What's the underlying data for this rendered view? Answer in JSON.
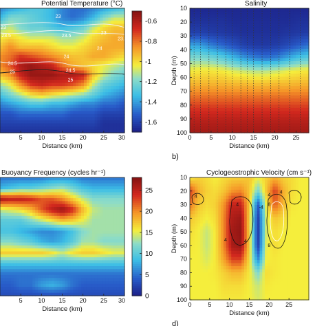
{
  "colors": {
    "cold": "#1c2d8f",
    "blue": "#2f6fd0",
    "cyan": "#35c1e6",
    "yellow": "#f6ee3c",
    "orange": "#f59a26",
    "red": "#cf2020",
    "darkred": "#861313"
  },
  "chart_data": [
    {
      "id": "a",
      "type": "heatmap",
      "title": "Potential Temperature (°C)",
      "xlabel": "Distance (km)",
      "ylabel": "",
      "panel_label": "",
      "xlim": [
        0,
        30
      ],
      "ylim": [
        100,
        10
      ],
      "x_ticks": [
        5,
        10,
        15,
        20,
        25,
        30
      ],
      "y_ticks": [],
      "colorbar": {
        "ticks": [
          -0.6,
          -0.8,
          -1,
          -1.2,
          -1.4,
          -1.6
        ],
        "range": [
          -1.7,
          -0.5
        ]
      },
      "contour_labels": [
        {
          "text": "23",
          "x": 0.8,
          "y": 25
        },
        {
          "text": "23",
          "x": 14,
          "y": 17
        },
        {
          "text": "23.5",
          "x": 1.5,
          "y": 31
        },
        {
          "text": "23.5",
          "x": 16,
          "y": 31
        },
        {
          "text": "23",
          "x": 25,
          "y": 29
        },
        {
          "text": "23.5",
          "x": 29.5,
          "y": 33
        },
        {
          "text": "24",
          "x": 16,
          "y": 46
        },
        {
          "text": "24",
          "x": 24,
          "y": 40
        },
        {
          "text": "24.5",
          "x": 3,
          "y": 51
        },
        {
          "text": "25",
          "x": 3,
          "y": 57
        },
        {
          "text": "24.5",
          "x": 17,
          "y": 56
        },
        {
          "text": "25",
          "x": 17,
          "y": 63
        }
      ],
      "cells": [
        [
          -1.45,
          -1.4,
          -1.35,
          -1.3,
          -1.3,
          -1.35,
          -1.45,
          -1.5,
          -1.5,
          -1.45,
          -1.4,
          -1.35,
          -1.3
        ],
        [
          -1.35,
          -1.2,
          -1.2,
          -1.25,
          -1.3,
          -1.35,
          -1.45,
          -1.5,
          -1.45,
          -1.35,
          -1.2,
          -1.1,
          -1.1
        ],
        [
          -1.15,
          -1.1,
          -1.2,
          -1.25,
          -1.25,
          -1.3,
          -1.35,
          -1.3,
          -1.25,
          -1.1,
          -1.0,
          -0.95,
          -0.95
        ],
        [
          -1.05,
          -1.0,
          -1.05,
          -1.1,
          -1.1,
          -1.1,
          -1.15,
          -1.15,
          -1.1,
          -1.0,
          -0.95,
          -0.9,
          -0.9
        ],
        [
          -0.95,
          -0.85,
          -0.95,
          -0.95,
          -0.95,
          -1.0,
          -1.05,
          -1.05,
          -1.0,
          -0.95,
          -0.9,
          -0.9,
          -0.9
        ],
        [
          -0.85,
          -0.8,
          -0.7,
          -0.75,
          -0.8,
          -0.85,
          -0.9,
          -0.95,
          -0.95,
          -0.9,
          -0.9,
          -0.95,
          -1.0
        ],
        [
          -0.85,
          -0.75,
          -0.6,
          -0.55,
          -0.6,
          -0.65,
          -0.8,
          -0.9,
          -0.95,
          -1.0,
          -1.05,
          -1.1,
          -1.15
        ],
        [
          -0.95,
          -0.85,
          -0.65,
          -0.55,
          -0.55,
          -0.55,
          -0.6,
          -0.6,
          -0.65,
          -0.95,
          -1.1,
          -1.2,
          -1.25
        ],
        [
          -1.15,
          -1.05,
          -0.85,
          -0.7,
          -0.65,
          -0.7,
          -0.7,
          -0.75,
          -0.85,
          -1.1,
          -1.25,
          -1.3,
          -1.35
        ],
        [
          -1.3,
          -1.2,
          -1.1,
          -1.0,
          -0.95,
          -1.0,
          -1.05,
          -1.1,
          -1.15,
          -1.25,
          -1.35,
          -1.4,
          -1.45
        ],
        [
          -1.45,
          -1.4,
          -1.35,
          -1.3,
          -1.3,
          -1.35,
          -1.35,
          -1.4,
          -1.45,
          -1.45,
          -1.5,
          -1.5,
          -1.55
        ],
        [
          -1.55,
          -1.55,
          -1.5,
          -1.5,
          -1.5,
          -1.5,
          -1.5,
          -1.55,
          -1.55,
          -1.55,
          -1.6,
          -1.6,
          -1.6
        ],
        [
          -1.6,
          -1.6,
          -1.6,
          -1.6,
          -1.6,
          -1.6,
          -1.6,
          -1.6,
          -1.6,
          -1.6,
          -1.65,
          -1.65,
          -1.65
        ],
        [
          -1.65,
          -1.65,
          -1.65,
          -1.65,
          -1.65,
          -1.65,
          -1.65,
          -1.65,
          -1.65,
          -1.65,
          -1.65,
          -1.65,
          -1.65
        ]
      ]
    },
    {
      "id": "b",
      "type": "heatmap",
      "title": "Salinity",
      "xlabel": "Distance (km)",
      "ylabel": "Depth (m)",
      "panel_label": "b)",
      "xlim": [
        0,
        28
      ],
      "ylim": [
        100,
        10
      ],
      "x_ticks": [
        0,
        5,
        10,
        15,
        20,
        25
      ],
      "y_ticks": [
        10,
        20,
        30,
        40,
        50,
        60,
        70,
        80,
        90,
        100
      ],
      "station_x": [
        1,
        2.5,
        4.5,
        6.5,
        8.5,
        10,
        12,
        13.5,
        15,
        17,
        19,
        21,
        23.5,
        26
      ],
      "cells": [
        [
          0.02,
          0.02,
          0.02,
          0.02,
          0.02,
          0.02,
          0.02,
          0.02,
          0.02,
          0.02,
          0.02,
          0.02
        ],
        [
          0.04,
          0.04,
          0.04,
          0.04,
          0.03,
          0.03,
          0.03,
          0.03,
          0.03,
          0.03,
          0.04,
          0.04
        ],
        [
          0.08,
          0.08,
          0.07,
          0.06,
          0.05,
          0.04,
          0.04,
          0.04,
          0.04,
          0.05,
          0.06,
          0.07
        ],
        [
          0.26,
          0.25,
          0.2,
          0.16,
          0.12,
          0.08,
          0.06,
          0.06,
          0.07,
          0.1,
          0.14,
          0.18
        ],
        [
          0.42,
          0.42,
          0.4,
          0.36,
          0.3,
          0.24,
          0.2,
          0.18,
          0.2,
          0.26,
          0.32,
          0.36
        ],
        [
          0.55,
          0.56,
          0.56,
          0.55,
          0.52,
          0.5,
          0.48,
          0.48,
          0.5,
          0.53,
          0.55,
          0.56
        ],
        [
          0.64,
          0.64,
          0.64,
          0.64,
          0.63,
          0.63,
          0.62,
          0.62,
          0.63,
          0.63,
          0.64,
          0.64
        ],
        [
          0.74,
          0.74,
          0.74,
          0.74,
          0.74,
          0.74,
          0.74,
          0.74,
          0.74,
          0.74,
          0.74,
          0.74
        ],
        [
          0.83,
          0.83,
          0.83,
          0.83,
          0.83,
          0.83,
          0.83,
          0.83,
          0.83,
          0.83,
          0.83,
          0.83
        ],
        [
          0.9,
          0.9,
          0.9,
          0.9,
          0.9,
          0.9,
          0.9,
          0.9,
          0.9,
          0.9,
          0.9,
          0.9
        ],
        [
          0.94,
          0.94,
          0.94,
          0.94,
          0.94,
          0.94,
          0.94,
          0.94,
          0.94,
          0.94,
          0.94,
          0.94
        ]
      ]
    },
    {
      "id": "c",
      "type": "heatmap",
      "title": "Buoyancy Frequency (cycles hr⁻¹)",
      "xlabel": "Distance (km)",
      "ylabel": "",
      "panel_label": "",
      "xlim": [
        0,
        30
      ],
      "ylim": [
        100,
        10
      ],
      "x_ticks": [
        5,
        10,
        15,
        20,
        25,
        30
      ],
      "y_ticks": [],
      "colorbar": {
        "ticks": [
          25,
          20,
          15,
          10,
          5,
          0
        ],
        "range": [
          0,
          28
        ]
      },
      "cells": [
        [
          5,
          5,
          5,
          5,
          5,
          6,
          6,
          6,
          5,
          5,
          5,
          5,
          5
        ],
        [
          8,
          9,
          10,
          10,
          11,
          12,
          13,
          11,
          9,
          8,
          8,
          8,
          8
        ],
        [
          26,
          25,
          25,
          24,
          22,
          22,
          20,
          17,
          14,
          12,
          12,
          12,
          12
        ],
        [
          14,
          15,
          16,
          18,
          22,
          25,
          27,
          24,
          18,
          14,
          13,
          13,
          13
        ],
        [
          10,
          10,
          10,
          12,
          14,
          16,
          18,
          17,
          15,
          13,
          13,
          13,
          13
        ],
        [
          9,
          9,
          8,
          7,
          6,
          6,
          7,
          9,
          12,
          13,
          13,
          13,
          13
        ],
        [
          12,
          12,
          11,
          10,
          8,
          7,
          8,
          10,
          13,
          13,
          12,
          12,
          12
        ],
        [
          17,
          17,
          17,
          17,
          17,
          16,
          14,
          16,
          17,
          17,
          16,
          15,
          15
        ],
        [
          9,
          9,
          9,
          9,
          9,
          9,
          9,
          9,
          9,
          9,
          9,
          9,
          9
        ],
        [
          5,
          5,
          5,
          5,
          5,
          5,
          5,
          5,
          5,
          5,
          5,
          5,
          5
        ],
        [
          4,
          4,
          5,
          5,
          7,
          8,
          7,
          5,
          4,
          4,
          4,
          4,
          4
        ],
        [
          3,
          3,
          3,
          3,
          3,
          3,
          3,
          3,
          3,
          3,
          3,
          3,
          3
        ]
      ]
    },
    {
      "id": "d",
      "type": "heatmap",
      "title": "Cyclogeostrophic Velocity (cm s⁻¹)",
      "xlabel": "Distance (km)",
      "ylabel": "Depth (m)",
      "panel_label": "d)",
      "xlim": [
        0,
        30
      ],
      "ylim": [
        100,
        10
      ],
      "x_ticks": [
        0,
        5,
        10,
        15,
        20,
        25
      ],
      "y_ticks": [
        10,
        20,
        30,
        40,
        50,
        60,
        70,
        80,
        90,
        100
      ],
      "contour_labels": [
        {
          "text": "4",
          "x": 1.5,
          "y": 25
        },
        {
          "text": "4",
          "x": 12,
          "y": 31
        },
        {
          "text": "4",
          "x": 9,
          "y": 57
        },
        {
          "text": "4",
          "x": 14,
          "y": 58
        },
        {
          "text": "-4",
          "x": 18,
          "y": 33
        },
        {
          "text": "4",
          "x": 20,
          "y": 24
        },
        {
          "text": "8",
          "x": 20,
          "y": 31
        },
        {
          "text": "8",
          "x": 20,
          "y": 61
        },
        {
          "text": "4",
          "x": 23,
          "y": 22
        }
      ],
      "cells": [
        [
          0.55,
          0.6,
          0.58,
          0.55,
          0.58,
          0.6,
          0.6,
          0.62,
          0.55,
          0.6,
          0.65,
          0.6,
          0.58,
          0.55,
          0.55
        ],
        [
          0.82,
          0.66,
          0.6,
          0.58,
          0.62,
          0.7,
          0.72,
          0.62,
          0.4,
          0.62,
          0.82,
          0.66,
          0.58,
          0.55,
          0.55
        ],
        [
          0.75,
          0.62,
          0.58,
          0.6,
          0.7,
          0.88,
          0.88,
          0.62,
          0.12,
          0.55,
          0.78,
          0.64,
          0.56,
          0.55,
          0.55
        ],
        [
          0.62,
          0.58,
          0.55,
          0.58,
          0.72,
          0.92,
          0.95,
          0.6,
          0.06,
          0.52,
          0.62,
          0.58,
          0.55,
          0.55,
          0.55
        ],
        [
          0.58,
          0.55,
          0.5,
          0.56,
          0.72,
          0.94,
          0.97,
          0.6,
          0.05,
          0.52,
          0.58,
          0.55,
          0.55,
          0.55,
          0.55
        ],
        [
          0.56,
          0.55,
          0.5,
          0.56,
          0.72,
          0.93,
          0.96,
          0.6,
          0.06,
          0.54,
          0.58,
          0.55,
          0.55,
          0.55,
          0.55
        ],
        [
          0.55,
          0.55,
          0.52,
          0.56,
          0.68,
          0.82,
          0.82,
          0.58,
          0.2,
          0.55,
          0.56,
          0.55,
          0.55,
          0.55,
          0.55
        ],
        [
          0.55,
          0.55,
          0.55,
          0.56,
          0.6,
          0.64,
          0.64,
          0.56,
          0.42,
          0.58,
          0.56,
          0.55,
          0.55,
          0.55,
          0.55
        ],
        [
          0.55,
          0.55,
          0.55,
          0.55,
          0.58,
          0.58,
          0.58,
          0.55,
          0.5,
          0.56,
          0.55,
          0.55,
          0.55,
          0.55,
          0.55
        ],
        [
          0.55,
          0.55,
          0.55,
          0.55,
          0.56,
          0.56,
          0.56,
          0.55,
          0.52,
          0.55,
          0.55,
          0.55,
          0.55,
          0.55,
          0.55
        ]
      ]
    }
  ]
}
